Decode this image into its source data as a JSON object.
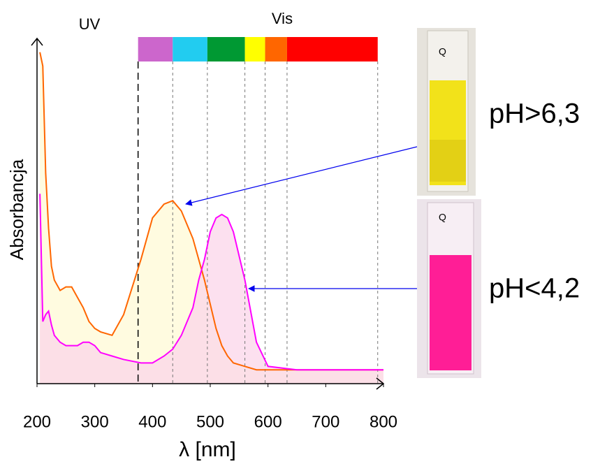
{
  "chart_data": {
    "type": "line",
    "title_uv": "UV",
    "title_vis": "Vis",
    "y_label": "Absorbancja",
    "x_label": "λ [nm]",
    "x": [
      205,
      210,
      215,
      220,
      225,
      230,
      240,
      250,
      260,
      270,
      280,
      290,
      300,
      310,
      330,
      350,
      380,
      400,
      420,
      435,
      450,
      470,
      480,
      490,
      500,
      510,
      520,
      530,
      540,
      560,
      580,
      600,
      650,
      800
    ],
    "series": [
      {
        "name": "pH>6,3",
        "color": "#ff6600",
        "fill": "#fffbe0",
        "values": [
          0.96,
          0.92,
          0.61,
          0.45,
          0.34,
          0.3,
          0.27,
          0.28,
          0.28,
          0.25,
          0.22,
          0.18,
          0.16,
          0.15,
          0.14,
          0.2,
          0.36,
          0.48,
          0.52,
          0.53,
          0.5,
          0.42,
          0.36,
          0.3,
          0.23,
          0.16,
          0.11,
          0.08,
          0.06,
          0.05,
          0.04,
          0.04,
          0.04,
          0.04
        ]
      },
      {
        "name": "pH<4,2",
        "color": "#ff00ff",
        "fill": "#fbd6ea",
        "values": [
          0.55,
          0.18,
          0.2,
          0.21,
          0.17,
          0.14,
          0.12,
          0.11,
          0.11,
          0.11,
          0.12,
          0.12,
          0.11,
          0.09,
          0.08,
          0.07,
          0.06,
          0.06,
          0.08,
          0.1,
          0.14,
          0.22,
          0.3,
          0.36,
          0.44,
          0.48,
          0.49,
          0.48,
          0.44,
          0.3,
          0.12,
          0.05,
          0.04,
          0.04
        ]
      }
    ],
    "xlim": [
      200,
      800
    ],
    "xticks": [
      200,
      300,
      400,
      500,
      600,
      700,
      800
    ],
    "ylim": [
      0,
      1
    ],
    "spectrum_bands": [
      {
        "color": "#cc66cc",
        "from": 375,
        "to": 435
      },
      {
        "color": "#22ccf0",
        "from": 435,
        "to": 495
      },
      {
        "color": "#009933",
        "from": 495,
        "to": 560
      },
      {
        "color": "#ffff00",
        "from": 560,
        "to": 595
      },
      {
        "color": "#ff6600",
        "from": 595,
        "to": 633
      },
      {
        "color": "#ff0000",
        "from": 633,
        "to": 790
      }
    ]
  }
}
